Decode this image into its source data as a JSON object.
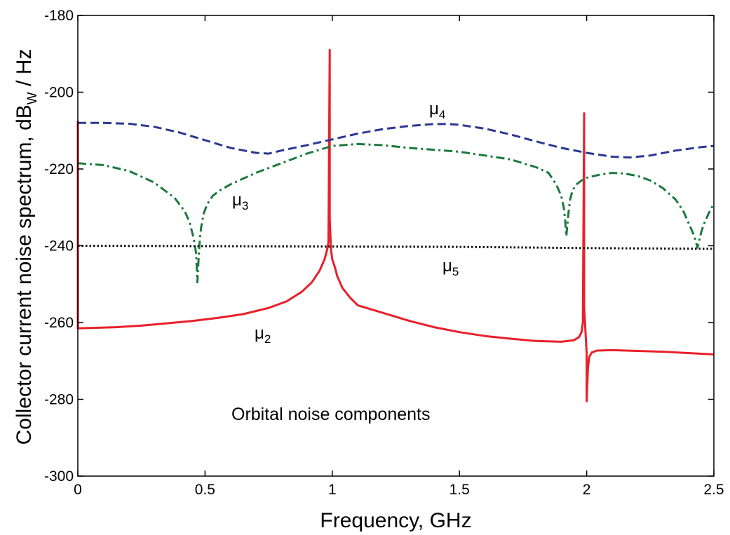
{
  "chart_data": {
    "type": "line",
    "xlabel": "Frequency, GHz",
    "ylabel": {
      "prefix": "Collector current noise spectrum, dB",
      "subscript": "W",
      "suffix": " / Hz"
    },
    "xlim": [
      0,
      2.5
    ],
    "ylim": [
      -300,
      -180
    ],
    "x_ticks": [
      0,
      0.5,
      1,
      1.5,
      2,
      2.5
    ],
    "x_tick_labels": [
      "0",
      "0.5",
      "1",
      "1.5",
      "2",
      "2.5"
    ],
    "y_ticks": [
      -300,
      -280,
      -260,
      -240,
      -220,
      -200,
      -180
    ],
    "y_tick_labels": [
      "-300",
      "-280",
      "-260",
      "-240",
      "-220",
      "-200",
      "-180"
    ],
    "grid": false,
    "annotation": "Orbital noise components",
    "series": [
      {
        "name": "μ2",
        "label_main": "μ",
        "label_sub": "2",
        "color": "#e8202a",
        "style": "solid",
        "x": [
          0,
          0,
          0.05,
          0.15,
          0.25,
          0.35,
          0.45,
          0.55,
          0.65,
          0.75,
          0.82,
          0.88,
          0.92,
          0.95,
          0.97,
          0.98,
          0.985,
          0.99,
          0.99,
          0.995,
          1.0,
          1.01,
          1.02,
          1.04,
          1.07,
          1.1,
          1.2,
          1.3,
          1.4,
          1.5,
          1.6,
          1.7,
          1.8,
          1.9,
          1.95,
          1.97,
          1.98,
          1.985,
          1.99,
          1.99,
          1.995,
          2.0,
          2.0,
          2.005,
          2.01,
          2.02,
          2.04,
          2.1,
          2.3,
          2.5
        ],
        "y": [
          -207.5,
          -261.5,
          -261.4,
          -261.2,
          -260.8,
          -260.2,
          -259.6,
          -258.8,
          -257.8,
          -256.2,
          -254.5,
          -252,
          -249.5,
          -246.5,
          -243.5,
          -241,
          -239,
          -189,
          -233,
          -241,
          -243.5,
          -245.5,
          -248,
          -251,
          -253.5,
          -255.5,
          -257.5,
          -259.5,
          -261.2,
          -262.5,
          -263.5,
          -264.2,
          -264.8,
          -265,
          -264.6,
          -263.8,
          -262.5,
          -260,
          -205.5,
          -256,
          -262,
          -268,
          -280.5,
          -272,
          -269,
          -267.8,
          -267.3,
          -267.2,
          -267.6,
          -268.3
        ]
      },
      {
        "name": "μ3",
        "label_main": "μ",
        "label_sub": "3",
        "color": "#1b7a3c",
        "style": "dashdot",
        "x": [
          0,
          0.1,
          0.2,
          0.3,
          0.38,
          0.42,
          0.44,
          0.455,
          0.465,
          0.47,
          0.475,
          0.48,
          0.485,
          0.495,
          0.51,
          0.53,
          0.56,
          0.6,
          0.7,
          0.8,
          0.9,
          1.0,
          1.1,
          1.2,
          1.3,
          1.4,
          1.5,
          1.6,
          1.7,
          1.8,
          1.85,
          1.88,
          1.9,
          1.91,
          1.915,
          1.92,
          1.925,
          1.93,
          1.935,
          1.945,
          1.96,
          1.98,
          2.0,
          2.05,
          2.1,
          2.15,
          2.2,
          2.25,
          2.3,
          2.35,
          2.38,
          2.4,
          2.42,
          2.43,
          2.435,
          2.44,
          2.445,
          2.45,
          2.46,
          2.48,
          2.5
        ],
        "y": [
          -218.5,
          -219,
          -220.5,
          -223.5,
          -227.5,
          -231,
          -234,
          -238,
          -242,
          -249.5,
          -243,
          -238,
          -235,
          -231.5,
          -229,
          -227,
          -225.5,
          -224,
          -221,
          -218.5,
          -216,
          -214,
          -213.5,
          -213.8,
          -214.5,
          -215,
          -215.5,
          -216.5,
          -217.5,
          -219.5,
          -221,
          -224,
          -227,
          -230,
          -233,
          -237.5,
          -234,
          -230.5,
          -228,
          -225.5,
          -224,
          -223,
          -222.3,
          -221.5,
          -221,
          -221.2,
          -221.8,
          -223,
          -225,
          -228,
          -231,
          -234,
          -237,
          -239,
          -240.5,
          -239.5,
          -238,
          -236.5,
          -234.5,
          -231.5,
          -229
        ]
      },
      {
        "name": "μ4",
        "label_main": "μ",
        "label_sub": "4",
        "color": "#2b3990",
        "style": "dashed",
        "x": [
          0,
          0.1,
          0.2,
          0.3,
          0.4,
          0.5,
          0.6,
          0.7,
          0.75,
          0.8,
          0.9,
          1.0,
          1.1,
          1.2,
          1.3,
          1.4,
          1.45,
          1.5,
          1.6,
          1.7,
          1.8,
          1.9,
          2.0,
          2.1,
          2.17,
          2.25,
          2.35,
          2.45,
          2.5
        ],
        "y": [
          -208,
          -208,
          -208.2,
          -209,
          -210.5,
          -212.5,
          -214.5,
          -215.8,
          -216,
          -215.2,
          -213.8,
          -212.3,
          -210.8,
          -209.6,
          -208.8,
          -208.3,
          -208.3,
          -208.5,
          -209.5,
          -211,
          -212.8,
          -214.5,
          -215.8,
          -216.8,
          -217,
          -216.5,
          -215.2,
          -214.3,
          -214
        ]
      },
      {
        "name": "μ5",
        "label_main": "μ",
        "label_sub": "5",
        "color": "#111111",
        "style": "dotted",
        "x": [
          0,
          0.5,
          1,
          1.5,
          2,
          2.5
        ],
        "y": [
          -240,
          -240.1,
          -240.2,
          -240.3,
          -240.6,
          -240.8
        ]
      }
    ]
  }
}
